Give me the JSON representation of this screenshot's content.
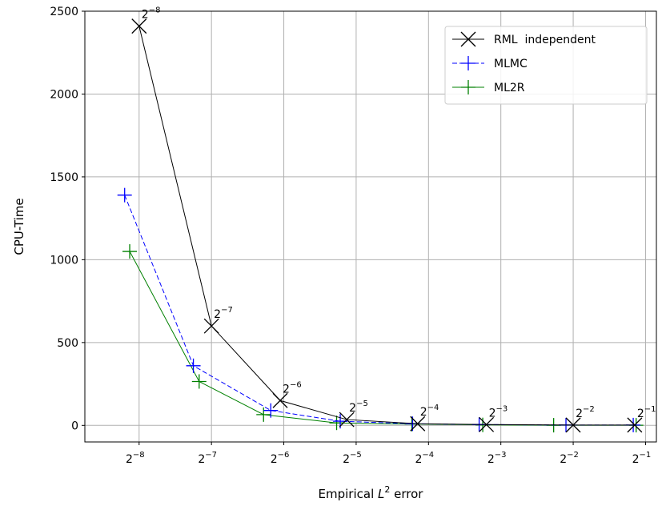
{
  "chart_data": {
    "type": "line",
    "xscale": "log2",
    "xlim": [
      -8.75,
      -0.85
    ],
    "ylim": [
      -100,
      2500
    ],
    "xticks": [
      {
        "base": "2",
        "exp": "−8"
      },
      {
        "base": "2",
        "exp": "−7"
      },
      {
        "base": "2",
        "exp": "−6"
      },
      {
        "base": "2",
        "exp": "−5"
      },
      {
        "base": "2",
        "exp": "−4"
      },
      {
        "base": "2",
        "exp": "−3"
      },
      {
        "base": "2",
        "exp": "−2"
      },
      {
        "base": "2",
        "exp": "−1"
      }
    ],
    "yticks": [
      "0",
      "500",
      "1000",
      "1500",
      "2000",
      "2500"
    ],
    "xlabel": {
      "prefix": "Empirical ",
      "var": "L",
      "sup": "2",
      "suffix": " error"
    },
    "ylabel": "CPU-Time",
    "grid": true,
    "legend_position": "top-right",
    "series": [
      {
        "name": "RML  independent",
        "color": "#000000",
        "marker": "x",
        "linestyle": "solid",
        "x": [
          -8.0,
          -7.0,
          -6.05,
          -5.13,
          -4.15,
          -3.2,
          -2.0,
          -1.15
        ],
        "y": [
          2410,
          600,
          150,
          35,
          10,
          5,
          2,
          2
        ],
        "point_labels": [
          "−8",
          "−7",
          "−6",
          "−5",
          "−4",
          "−3",
          "−2",
          "−1"
        ]
      },
      {
        "name": "MLMC",
        "color": "#0000ff",
        "marker": "+",
        "linestyle": "dashed",
        "x": [
          -8.2,
          -7.25,
          -6.18,
          -5.22,
          -4.22,
          -3.3,
          -2.1,
          -1.17
        ],
        "y": [
          1390,
          360,
          90,
          25,
          10,
          5,
          2,
          2
        ],
        "point_labels": []
      },
      {
        "name": "ML2R",
        "color": "#008000",
        "marker": "+",
        "linestyle": "solid",
        "x": [
          -8.13,
          -7.17,
          -6.28,
          -5.27,
          -4.23,
          -3.25,
          -2.27,
          -1.13
        ],
        "y": [
          1050,
          265,
          65,
          15,
          8,
          3,
          1,
          1
        ],
        "point_labels": []
      }
    ]
  }
}
